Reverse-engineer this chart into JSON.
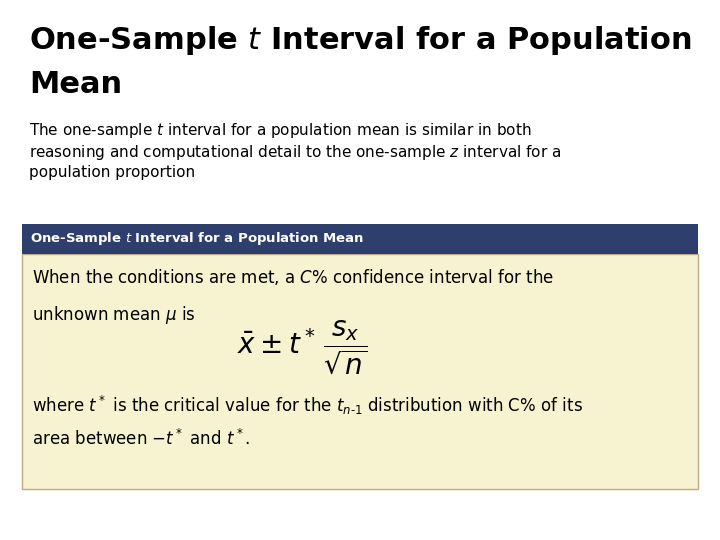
{
  "bg_color": "#FFFFFF",
  "title_fontsize": 22,
  "body_fontsize": 11,
  "header_fontsize": 9.5,
  "content_fontsize": 12,
  "box_header_bg": "#2E3F6E",
  "box_header_fg": "#FFFFFF",
  "box_body_bg": "#F7F3D0",
  "box_body_border": "#BBAA88"
}
